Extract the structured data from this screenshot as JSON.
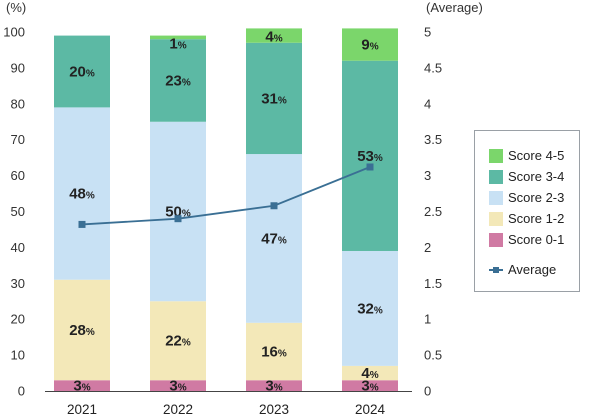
{
  "chart_data": {
    "type": "bar",
    "stacked": true,
    "categories": [
      "2021",
      "2022",
      "2023",
      "2024"
    ],
    "series": [
      {
        "name": "Score 0-1",
        "color": "#d07aa3",
        "values": [
          3,
          3,
          3,
          3
        ],
        "labels": [
          "3",
          "3",
          "3",
          "3"
        ]
      },
      {
        "name": "Score 1-2",
        "color": "#f3e8b8",
        "values": [
          28,
          22,
          16,
          4
        ],
        "labels": [
          "28",
          "22",
          "16",
          "4"
        ]
      },
      {
        "name": "Score 2-3",
        "color": "#c8e1f4",
        "values": [
          48,
          50,
          47,
          32
        ],
        "labels": [
          "48",
          "50",
          "47",
          "32"
        ]
      },
      {
        "name": "Score 3-4",
        "color": "#5cb9a4",
        "values": [
          20,
          23,
          31,
          53
        ],
        "labels": [
          "20",
          "23",
          "31",
          "53"
        ]
      },
      {
        "name": "Score 4-5",
        "color": "#7bd66b",
        "values": [
          0,
          1,
          4,
          9
        ],
        "labels": [
          "",
          "1",
          "4",
          "9"
        ]
      }
    ],
    "line": {
      "name": "Average",
      "color": "#3a6f94",
      "values": [
        2.32,
        2.4,
        2.58,
        3.12
      ]
    },
    "y_left": {
      "label": "(%)",
      "ylim": [
        0,
        100
      ],
      "ticks": [
        "0",
        "10",
        "20",
        "30",
        "40",
        "50",
        "60",
        "70",
        "80",
        "90",
        "100"
      ]
    },
    "y_right": {
      "label": "(Average)",
      "ylim": [
        0,
        5
      ],
      "ticks": [
        "0",
        "0.5",
        "1",
        "1.5",
        "2",
        "2.5",
        "3",
        "3.5",
        "4",
        "4.5",
        "5"
      ]
    },
    "percent_suffix": "%",
    "legend_position": "right",
    "grid": false
  },
  "legend": {
    "items": [
      {
        "label": "Score 4-5",
        "color": "#7bd66b"
      },
      {
        "label": "Score 3-4",
        "color": "#5cb9a4"
      },
      {
        "label": "Score 2-3",
        "color": "#c8e1f4"
      },
      {
        "label": "Score 1-2",
        "color": "#f3e8b8"
      },
      {
        "label": "Score 0-1",
        "color": "#d07aa3"
      }
    ],
    "line_label": "Average"
  }
}
